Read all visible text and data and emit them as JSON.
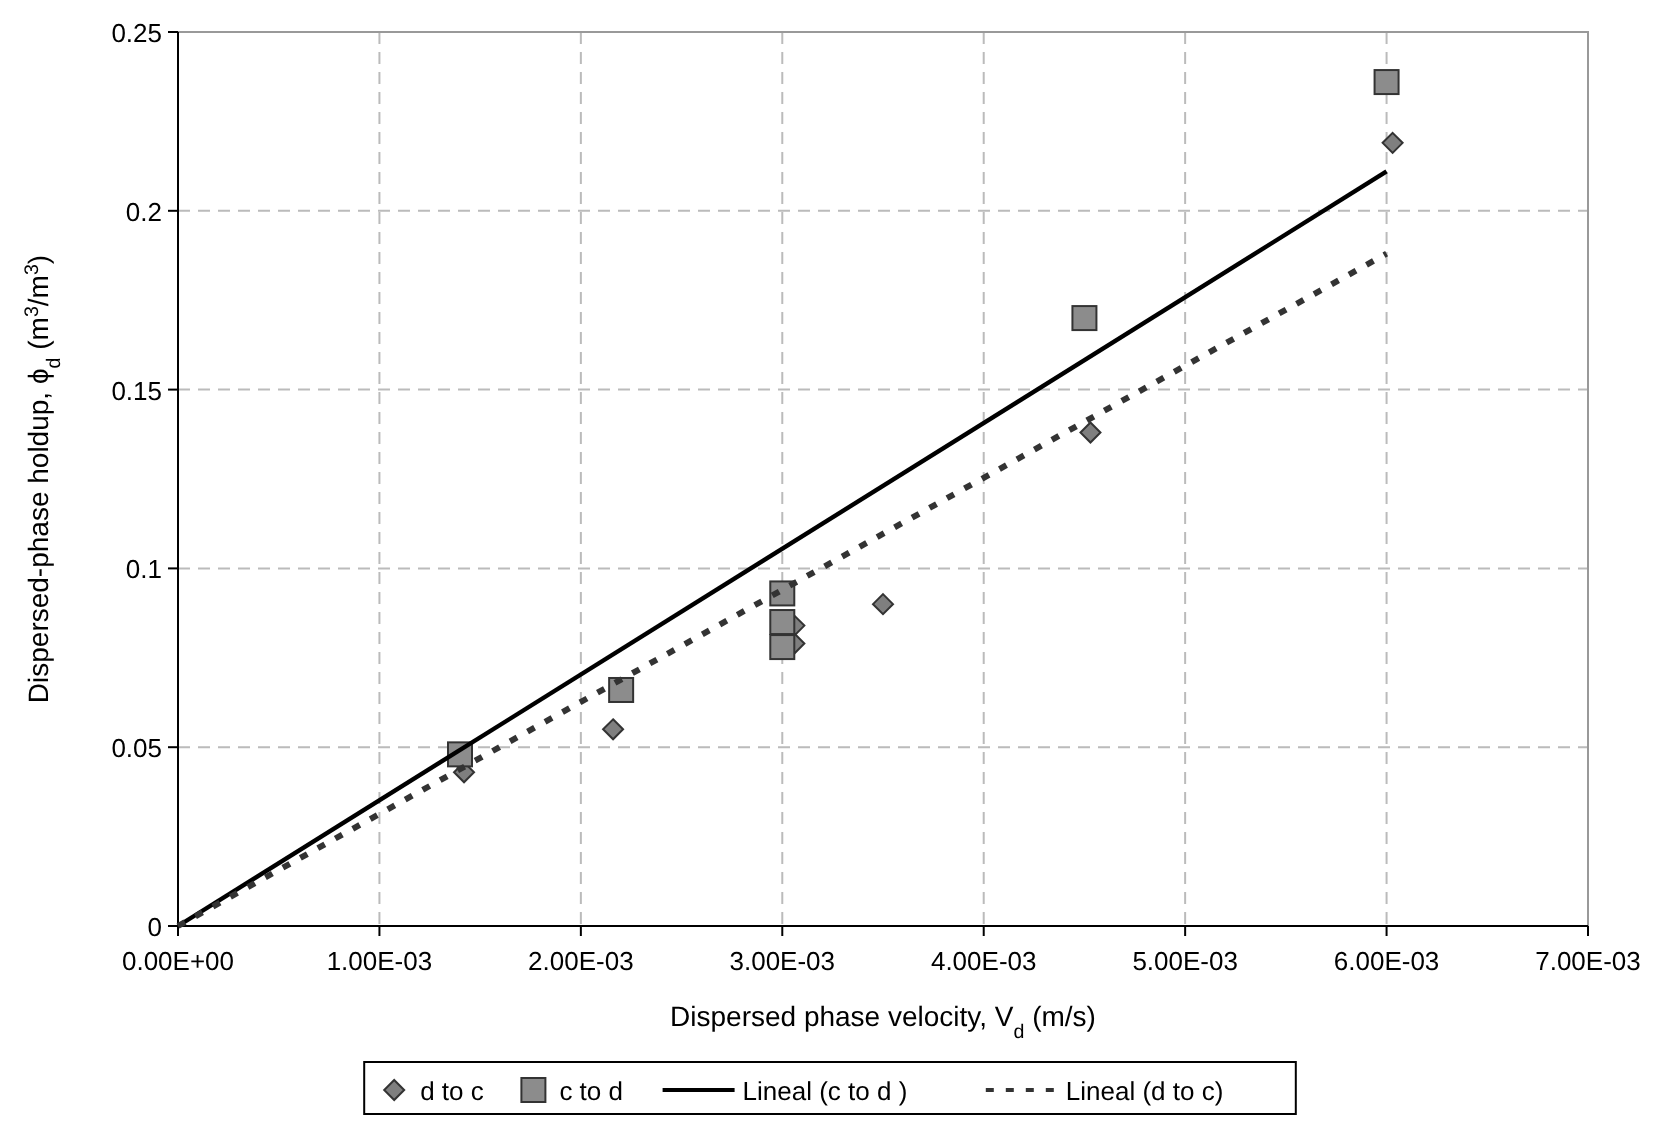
{
  "chart_data": {
    "type": "scatter",
    "xlabel": "Dispersed phase velocity, V$_{d}$ (m/s)",
    "ylabel": "Dispersed-phase holdup, ϕ$_{d}$ (m$^{3}$/m$^{3}$)",
    "xlim": [
      0,
      0.007
    ],
    "xticks": [
      {
        "value": 0,
        "label": "0.00E+00"
      },
      {
        "value": 0.001,
        "label": "1.00E-03"
      },
      {
        "value": 0.002,
        "label": "2.00E-03"
      },
      {
        "value": 0.003,
        "label": "3.00E-03"
      },
      {
        "value": 0.004,
        "label": "4.00E-03"
      },
      {
        "value": 0.005,
        "label": "5.00E-03"
      },
      {
        "value": 0.006,
        "label": "6.00E-03"
      },
      {
        "value": 0.007,
        "label": "7.00E-03"
      }
    ],
    "ylim": [
      0,
      0.25
    ],
    "yticks": [
      0,
      0.05,
      0.1,
      0.15,
      0.2,
      0.25
    ],
    "grid": true,
    "legend": "bottom",
    "series": [
      {
        "name": "d to c",
        "marker": "diamond",
        "color": "#7f7f7f",
        "x": [
          0.00142,
          0.00216,
          0.00306,
          0.00306,
          0.0035,
          0.00453,
          0.00603
        ],
        "values": [
          0.043,
          0.055,
          0.084,
          0.079,
          0.09,
          0.138,
          0.219
        ]
      },
      {
        "name": "c to d",
        "marker": "square",
        "color": "#8c8c8c",
        "x": [
          0.0014,
          0.0022,
          0.003,
          0.003,
          0.003,
          0.0045,
          0.006
        ],
        "values": [
          0.048,
          0.066,
          0.093,
          0.085,
          0.078,
          0.17,
          0.236
        ]
      },
      {
        "name": "Lineal (c to d )",
        "type": "line",
        "marker": "none",
        "line_style": "solid",
        "color": "#000000",
        "x": [
          0,
          0.006
        ],
        "values": [
          0,
          0.211
        ]
      },
      {
        "name": "Lineal (d to c)",
        "type": "line",
        "marker": "none",
        "line_style": "dotted",
        "color": "#333333",
        "x": [
          0,
          0.006
        ],
        "values": [
          0,
          0.188
        ]
      }
    ]
  }
}
